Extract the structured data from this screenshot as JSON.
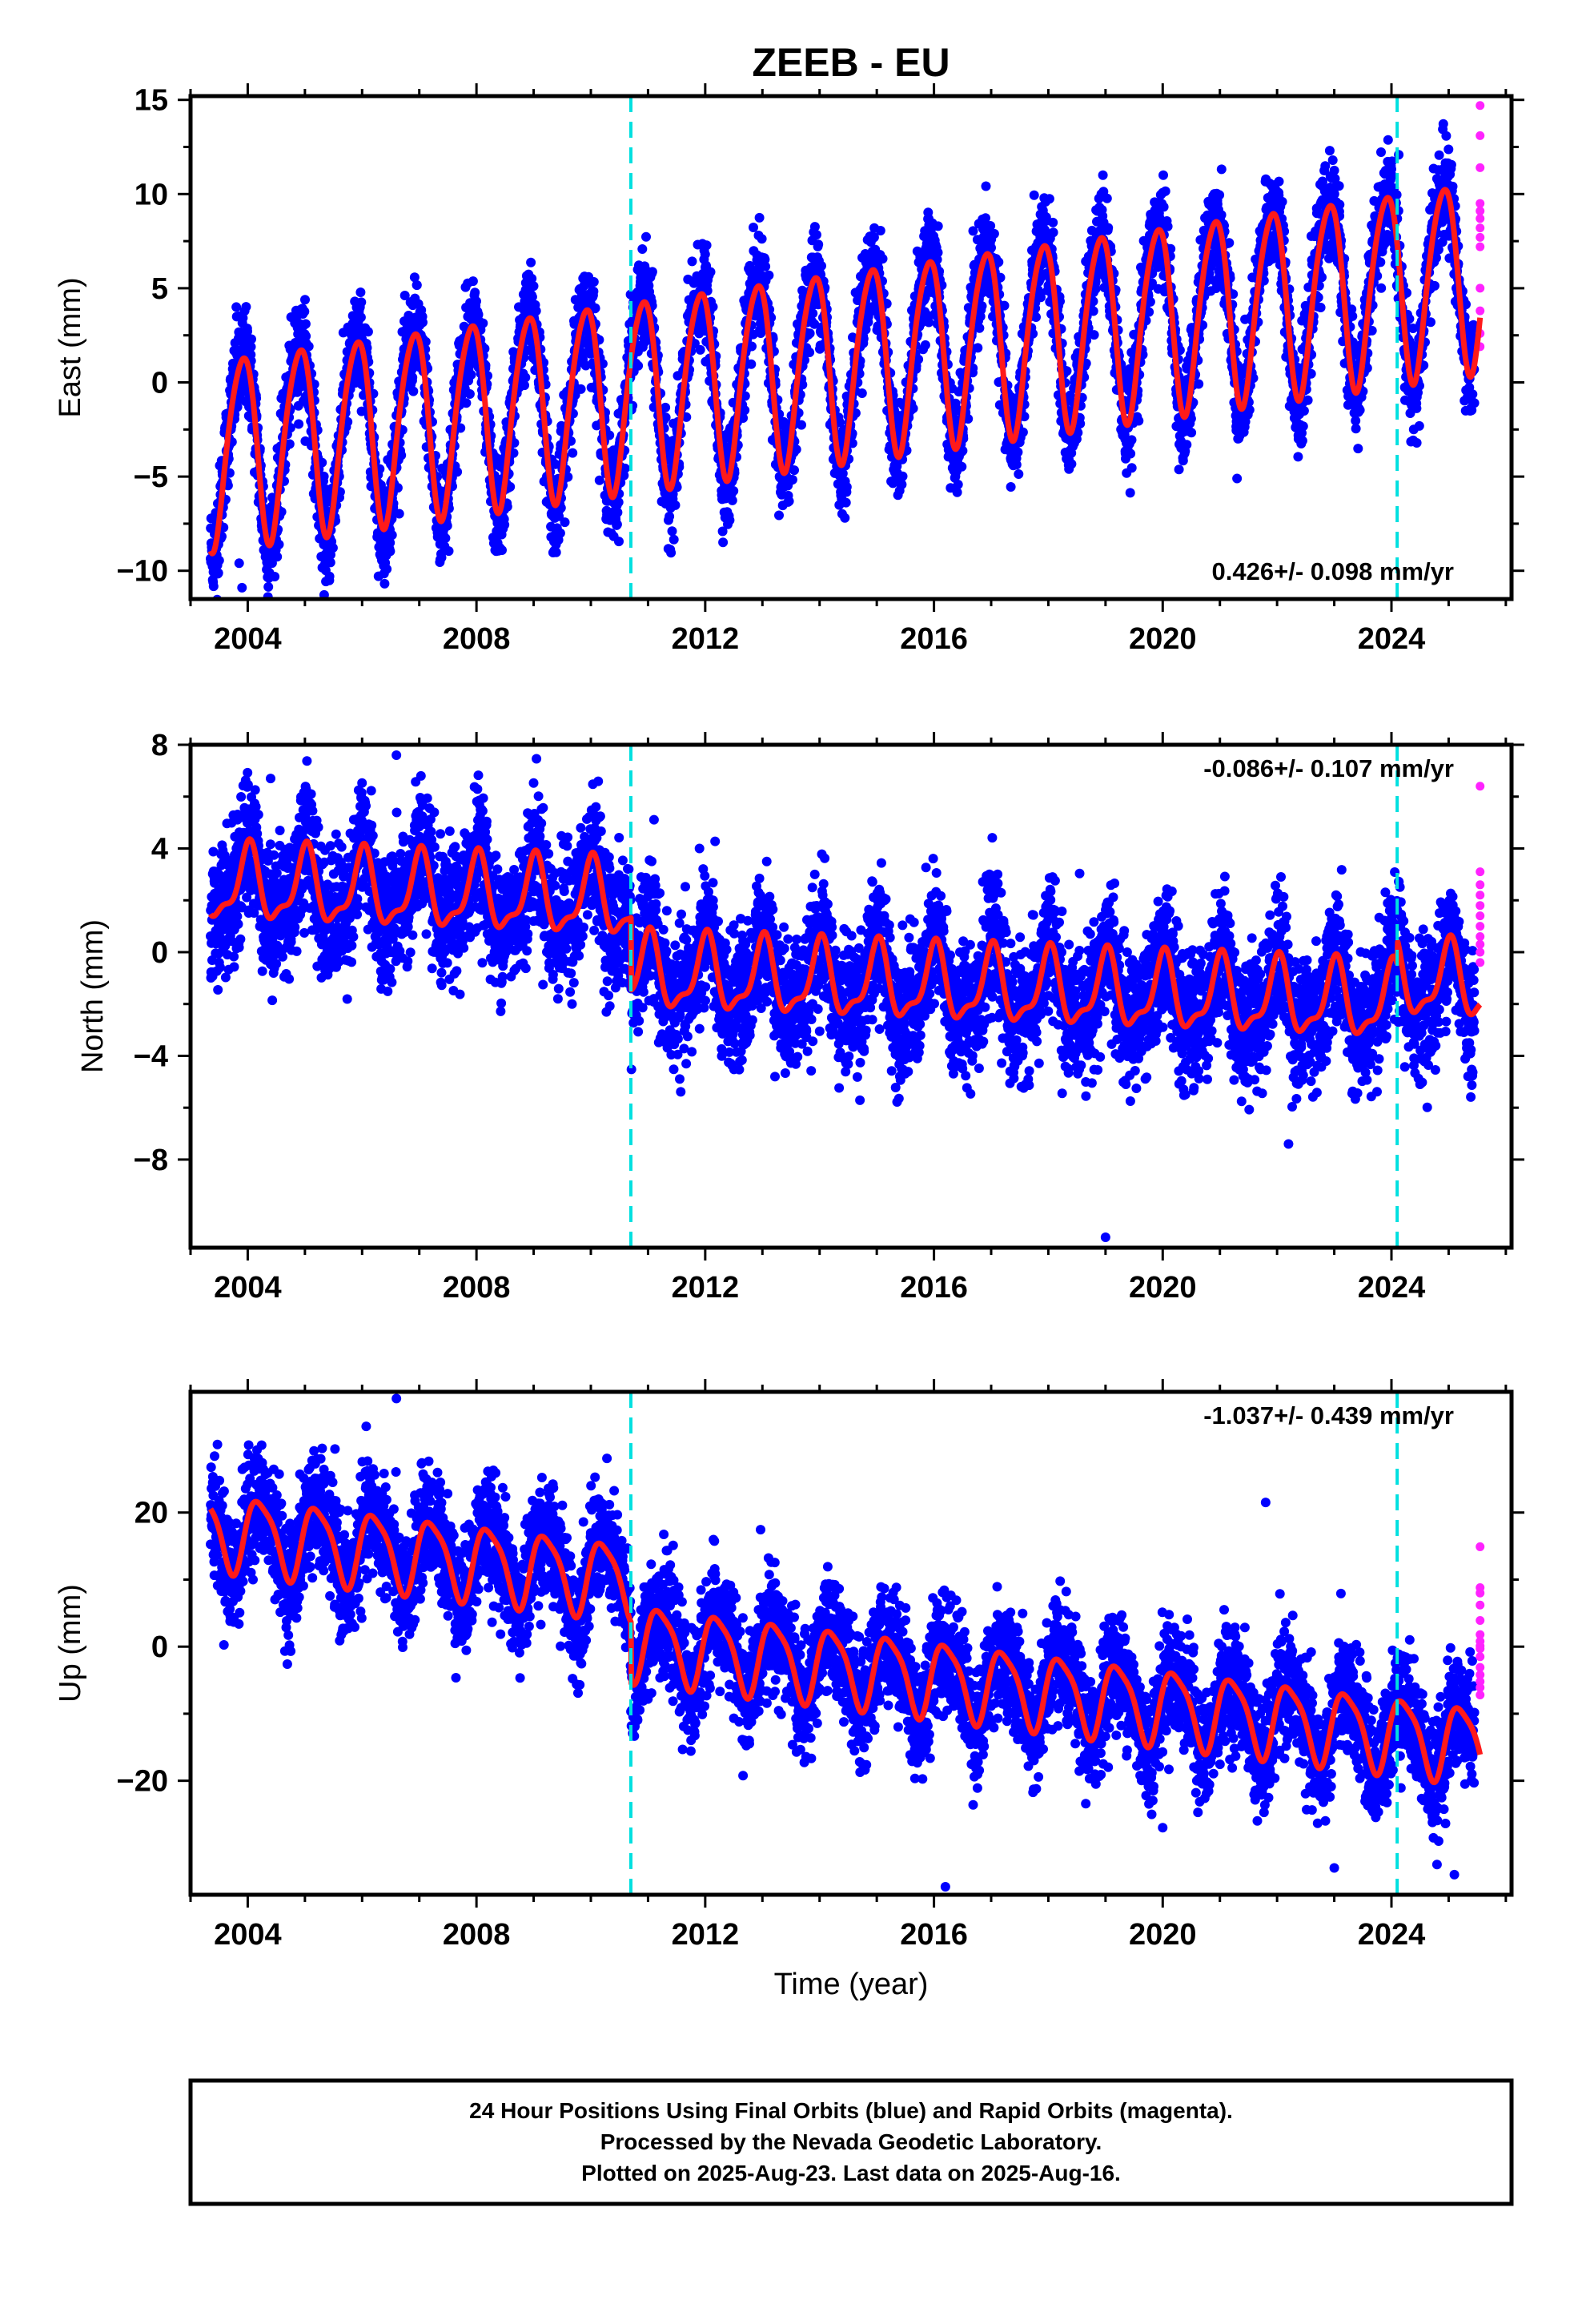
{
  "page": {
    "title": "ZEEB - EU",
    "footer_lines": [
      "24 Hour Positions Using Final Orbits (blue) and Rapid Orbits (magenta).",
      "Processed by the Nevada Geodetic Laboratory.",
      "Plotted on 2025-Aug-23. Last data on 2025-Aug-16."
    ]
  },
  "colors": {
    "final_orbits": "#0000ff",
    "rapid_orbits": "#ff22ff",
    "model_fit": "#ff1a1a",
    "offset_lines": "#00e0e0",
    "frame": "#000000"
  },
  "chart_data": [
    {
      "type": "scatter",
      "panel": "east",
      "title": "",
      "xlabel": "",
      "ylabel": "East (mm)",
      "xlim": [
        2003.0,
        2026.1
      ],
      "ylim": [
        -11.5,
        15.2
      ],
      "xticks": [
        2004,
        2008,
        2012,
        2016,
        2020,
        2024
      ],
      "yticks": [
        -10,
        -5,
        0,
        5,
        10,
        15
      ],
      "velocity_label": "0.426+/- 0.098 mm/yr",
      "velocity_label_position": "bottom-right",
      "offsets_years": [
        2010.7,
        2024.1
      ],
      "model": {
        "intercept": -3.6,
        "rate": 0.426,
        "offsets": [
          {
            "year": 2010.7,
            "value": 0
          },
          {
            "year": 2024.1,
            "value": 0
          }
        ],
        "annual": 5.0,
        "phase": 2.2,
        "semiannual": 0.6,
        "phase2": 0.4
      },
      "series": [
        {
          "name": "Final Orbits",
          "start": 2003.35,
          "end": 2025.45,
          "count": 7000,
          "noise": 1.3
        },
        {
          "name": "Rapid Orbits",
          "values": [
            14.7,
            13.1,
            11.4,
            9.5,
            9.1,
            8.7,
            8.2,
            7.7,
            7.2,
            5.0,
            3.8,
            2.6,
            1.9
          ],
          "x": 2025.55
        }
      ],
      "outliers": [
        {
          "x": 2003.9,
          "y": -10.9
        },
        {
          "x": 2003.85,
          "y": -9.6
        },
        {
          "x": 2021.3,
          "y": -5.1
        },
        {
          "x": 2003.8,
          "y": 4.0
        }
      ]
    },
    {
      "type": "scatter",
      "panel": "north",
      "title": "",
      "xlabel": "",
      "ylabel": "North (mm)",
      "xlim": [
        2003.0,
        2026.1
      ],
      "ylim": [
        -11.4,
        8.0
      ],
      "xticks": [
        2004,
        2008,
        2012,
        2016,
        2020,
        2024
      ],
      "yticks": [
        -8,
        -4,
        0,
        4,
        8
      ],
      "velocity_label": "-0.086+/- 0.107 mm/yr",
      "velocity_label_position": "top-right",
      "offsets_years": [
        2010.7,
        2024.1
      ],
      "model": {
        "intercept": 2.6,
        "rate": -0.086,
        "offsets": [
          {
            "year": 2010.7,
            "value": -2.8
          },
          {
            "year": 2024.1,
            "value": 0.9
          }
        ],
        "annual": 1.35,
        "phase": 1.5,
        "semiannual": 0.5,
        "phase2": 0.9
      },
      "series": [
        {
          "name": "Final Orbits",
          "start": 2003.35,
          "end": 2025.45,
          "count": 7000,
          "noise": 1.25
        },
        {
          "name": "Rapid Orbits",
          "values": [
            6.4,
            3.1,
            2.6,
            2.2,
            1.8,
            1.4,
            1.0,
            0.6,
            0.3,
            0.0,
            -0.4
          ],
          "x": 2025.55
        }
      ],
      "outliers": [
        {
          "x": 2019.0,
          "y": -11.0
        },
        {
          "x": 2022.2,
          "y": -7.4
        },
        {
          "x": 2006.6,
          "y": 7.6
        },
        {
          "x": 2004.4,
          "y": 6.7
        },
        {
          "x": 2011.9,
          "y": 4.0
        }
      ]
    },
    {
      "type": "scatter",
      "panel": "up",
      "title": "",
      "xlabel": "Time (year)",
      "ylabel": "Up (mm)",
      "xlim": [
        2003.0,
        2026.1
      ],
      "ylim": [
        -37.0,
        38.0
      ],
      "xticks": [
        2004,
        2008,
        2012,
        2016,
        2020,
        2024
      ],
      "yticks": [
        -20,
        0,
        20
      ],
      "velocity_label": "-1.037+/- 0.439 mm/yr",
      "velocity_label_position": "top-right",
      "offsets_years": [
        2010.7,
        2024.1
      ],
      "model": {
        "intercept": 17.5,
        "rate": -1.037,
        "offsets": [
          {
            "year": 2010.7,
            "value": -9.0
          },
          {
            "year": 2024.1,
            "value": 0.0
          }
        ],
        "annual": 5.5,
        "phase": 0.2,
        "semiannual": 1.2,
        "phase2": 1.3
      },
      "series": [
        {
          "name": "Final Orbits",
          "start": 2003.35,
          "end": 2025.45,
          "count": 7000,
          "noise": 4.2
        },
        {
          "name": "Rapid Orbits",
          "values": [
            14.9,
            8.8,
            8.0,
            6.2,
            3.9,
            1.8,
            0.8,
            0.1,
            -0.3,
            -1.5,
            -3.1,
            -4.2,
            -5.2,
            -6.1,
            -7.2
          ],
          "x": 2025.55
        }
      ],
      "outliers": [
        {
          "x": 2016.2,
          "y": -35.8
        },
        {
          "x": 2006.6,
          "y": 37.0
        },
        {
          "x": 2021.8,
          "y": 21.5
        },
        {
          "x": 2025.1,
          "y": -34.0
        },
        {
          "x": 2023.0,
          "y": -33.0
        },
        {
          "x": 2020.0,
          "y": -27.0
        }
      ]
    }
  ]
}
